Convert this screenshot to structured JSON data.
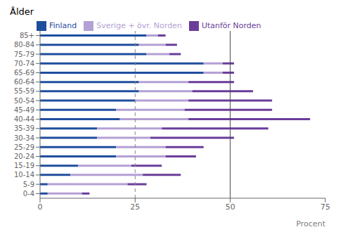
{
  "chart_data": {
    "type": "bar",
    "orientation": "horizontal",
    "stacked": true,
    "title": "Ålder",
    "xlabel": "Procent",
    "categories": [
      "85+",
      "80-84",
      "75-79",
      "70-74",
      "65-69",
      "60-64",
      "55-59",
      "50-54",
      "45-49",
      "40-44",
      "35-39",
      "30-34",
      "25-29",
      "20-24",
      "15-19",
      "10-14",
      "5-9",
      "0-4"
    ],
    "series": [
      {
        "name": "Finland",
        "color": "#1f4e9e",
        "values": [
          28,
          26,
          28,
          43,
          43,
          26,
          26,
          25,
          20,
          21,
          15,
          15,
          20,
          20,
          10,
          8,
          2,
          2
        ]
      },
      {
        "name": "Sverige + övr. Norden",
        "color": "#b3a0d4",
        "values": [
          3,
          7,
          6,
          5,
          5,
          13,
          14,
          14,
          18,
          18,
          17,
          14,
          13,
          13,
          14,
          19,
          21,
          9
        ]
      },
      {
        "name": "Utanför Norden",
        "color": "#6a3d9a",
        "values": [
          2,
          3,
          3,
          3,
          3,
          12,
          16,
          22,
          23,
          32,
          28,
          22,
          10,
          8,
          8,
          10,
          5,
          2
        ]
      }
    ],
    "xlim": [
      0,
      75
    ],
    "xticks": [
      0,
      25,
      50,
      75
    ],
    "vlines": [
      {
        "x": 25,
        "line_style": "dashed",
        "color": "#888888"
      },
      {
        "x": 50,
        "line_style": "solid",
        "color": "#444444"
      }
    ],
    "legend": "top",
    "grid": false
  }
}
